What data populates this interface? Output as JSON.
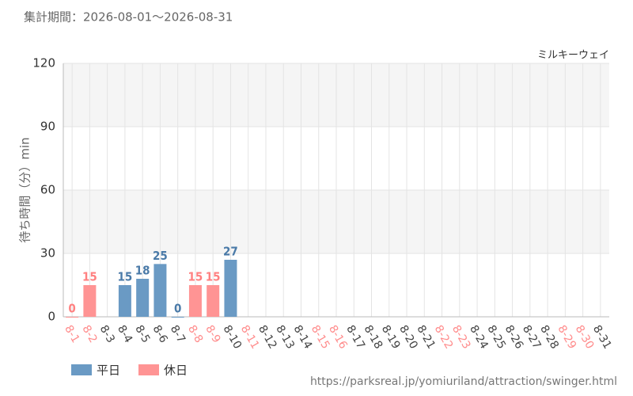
{
  "chart_data": {
    "type": "bar",
    "title": "集計期間：2026-08-01～2026-08-31",
    "subtitle": "ミルキーウェイ",
    "y_label": "待ち時間（分）min",
    "source": "https://parksreal.jp/yomiuriland/attraction/swinger.html",
    "categories": [
      "8-1",
      "8-2",
      "8-3",
      "8-4",
      "8-5",
      "8-6",
      "8-7",
      "8-8",
      "8-9",
      "8-10",
      "8-11",
      "8-12",
      "8-13",
      "8-14",
      "8-15",
      "8-16",
      "8-17",
      "8-18",
      "8-19",
      "8-20",
      "8-21",
      "8-22",
      "8-23",
      "8-24",
      "8-25",
      "8-26",
      "8-27",
      "8-28",
      "8-29",
      "8-30",
      "8-31"
    ],
    "category_colors": [
      "#ff8c8c",
      "#ff8c8c",
      "#444444",
      "#444444",
      "#444444",
      "#444444",
      "#444444",
      "#ff8c8c",
      "#ff8c8c",
      "#444444",
      "#ff8c8c",
      "#444444",
      "#444444",
      "#444444",
      "#ff8c8c",
      "#ff8c8c",
      "#444444",
      "#444444",
      "#444444",
      "#444444",
      "#444444",
      "#ff8c8c",
      "#ff8c8c",
      "#444444",
      "#444444",
      "#444444",
      "#444444",
      "#444444",
      "#ff8c8c",
      "#ff8c8c",
      "#444444"
    ],
    "series": [
      {
        "name": "平日",
        "color": "#6a9ac4",
        "label_color": "#4a7aa8",
        "values": [
          null,
          null,
          null,
          15,
          18,
          25,
          0,
          null,
          null,
          27,
          null,
          null,
          null,
          null,
          null,
          null,
          null,
          null,
          null,
          null,
          null,
          null,
          null,
          null,
          null,
          null,
          null,
          null,
          null,
          null,
          null
        ]
      },
      {
        "name": "休日",
        "color": "#ff9494",
        "label_color": "#ff8080",
        "values": [
          0,
          15,
          null,
          null,
          null,
          null,
          null,
          15,
          15,
          null,
          null,
          null,
          null,
          null,
          null,
          null,
          null,
          null,
          null,
          null,
          null,
          null,
          null,
          null,
          null,
          null,
          null,
          null,
          null,
          null,
          null
        ]
      }
    ],
    "ylim": [
      0,
      120
    ],
    "yticks": [
      0,
      30,
      60,
      90,
      120
    ],
    "grid": true
  }
}
